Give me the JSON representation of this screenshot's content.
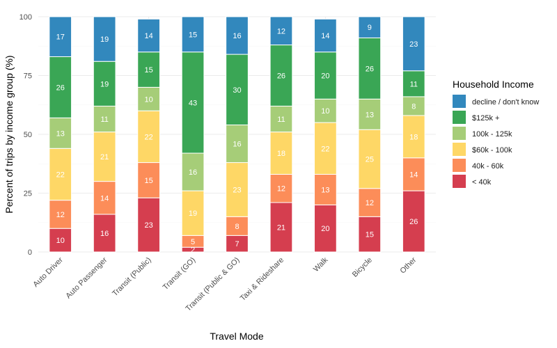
{
  "chart_data": {
    "type": "bar",
    "stacked": true,
    "xlabel": "Travel Mode",
    "ylabel": "Percent of trips by income group (%)",
    "ylim": [
      0,
      100
    ],
    "yticks": [
      0,
      25,
      50,
      75,
      100
    ],
    "grid": true,
    "legend_position": "right",
    "legend_title": "Household Income",
    "categories": [
      "Auto Driver",
      "Auto Passenger",
      "Transit (Public)",
      "Transit (GO)",
      "Transit (Public & GO)",
      "Taxi & Rideshare",
      "Walk",
      "Bicycle",
      "Other"
    ],
    "series": [
      {
        "name": "< 40k",
        "color": "#d53e4f",
        "values": [
          10,
          16,
          23,
          2,
          7,
          21,
          20,
          15,
          26
        ]
      },
      {
        "name": "40k - 60k",
        "color": "#fc8d59",
        "values": [
          12,
          14,
          15,
          5,
          8,
          12,
          13,
          12,
          14
        ]
      },
      {
        "name": "$60k - 100k",
        "color": "#fed766",
        "values": [
          22,
          21,
          22,
          19,
          23,
          18,
          22,
          25,
          18
        ]
      },
      {
        "name": "100k - 125k",
        "color": "#a6cd78",
        "values": [
          13,
          11,
          10,
          16,
          16,
          11,
          10,
          13,
          8
        ]
      },
      {
        "name": "$125k +",
        "color": "#3aa655",
        "values": [
          26,
          19,
          15,
          43,
          30,
          26,
          20,
          26,
          11
        ]
      },
      {
        "name": "decline / don't know",
        "color": "#3288bd",
        "values": [
          17,
          19,
          14,
          15,
          16,
          12,
          14,
          9,
          23
        ]
      }
    ],
    "legend_order": [
      "decline / don't know",
      "$125k +",
      "100k - 125k",
      "$60k - 100k",
      "40k - 60k",
      "< 40k"
    ]
  }
}
